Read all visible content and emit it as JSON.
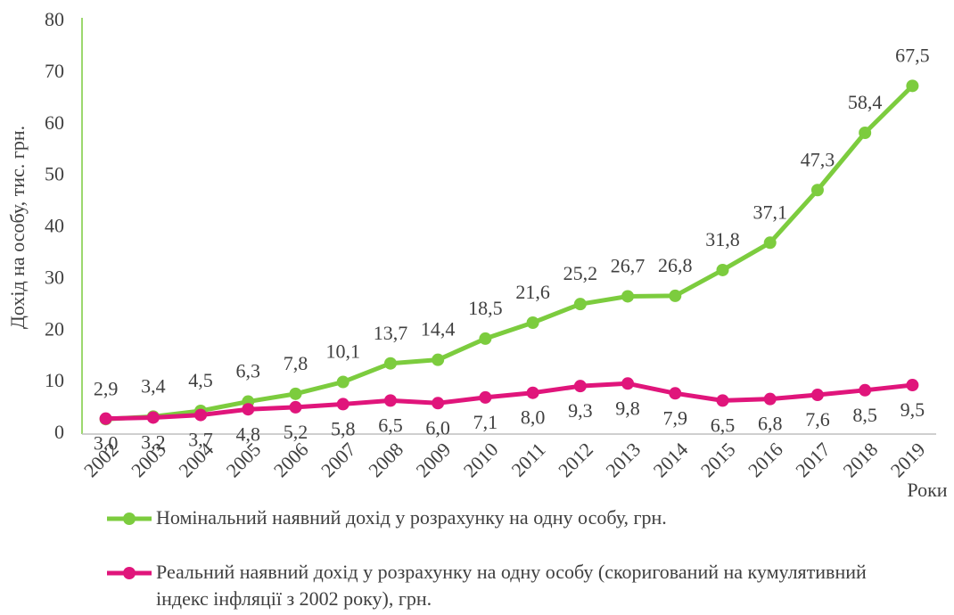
{
  "chart_data": {
    "type": "line",
    "y_label": "Дохід на особу, тис. грн.",
    "x_label": "Роки",
    "categories": [
      "2002",
      "2003",
      "2004",
      "2005",
      "2006",
      "2007",
      "2008",
      "2009",
      "2010",
      "2011",
      "2012",
      "2013",
      "2014",
      "2015",
      "2016",
      "2017",
      "2018",
      "2019"
    ],
    "series": [
      {
        "name": "Номінальний наявний дохід у розрахунку на одну особу, грн.",
        "color": "#7ccc3e",
        "values": [
          2.9,
          3.4,
          4.5,
          6.3,
          7.8,
          10.1,
          13.7,
          14.4,
          18.5,
          21.6,
          25.2,
          26.7,
          26.8,
          31.8,
          37.1,
          47.3,
          58.4,
          67.5
        ],
        "value_labels": [
          "2,9",
          "3,4",
          "4,5",
          "6,3",
          "7,8",
          "10,1",
          "13,7",
          "14,4",
          "18,5",
          "21,6",
          "25,2",
          "26,7",
          "26,8",
          "31,8",
          "37,1",
          "47,3",
          "58,4",
          "67,5"
        ]
      },
      {
        "name": "Реальний наявний дохід у розрахунку на одну особу (скоригований на кумулятивний індекс інфляції з 2002 року), грн.",
        "color": "#e0157b",
        "values": [
          3.0,
          3.2,
          3.7,
          4.8,
          5.2,
          5.8,
          6.5,
          6.0,
          7.1,
          8.0,
          9.3,
          9.8,
          7.9,
          6.5,
          6.8,
          7.6,
          8.5,
          9.5
        ],
        "value_labels": [
          "3,0",
          "3,2",
          "3,7",
          "4,8",
          "5,2",
          "5,8",
          "6,5",
          "6,0",
          "7,1",
          "8,0",
          "9,3",
          "9,8",
          "7,9",
          "6,5",
          "6,8",
          "7,6",
          "8,5",
          "9,5"
        ]
      }
    ],
    "ylim": [
      0,
      80
    ],
    "yticks": [
      0,
      10,
      20,
      30,
      40,
      50,
      60,
      70,
      80
    ],
    "grid": false,
    "legend": "bottom"
  }
}
